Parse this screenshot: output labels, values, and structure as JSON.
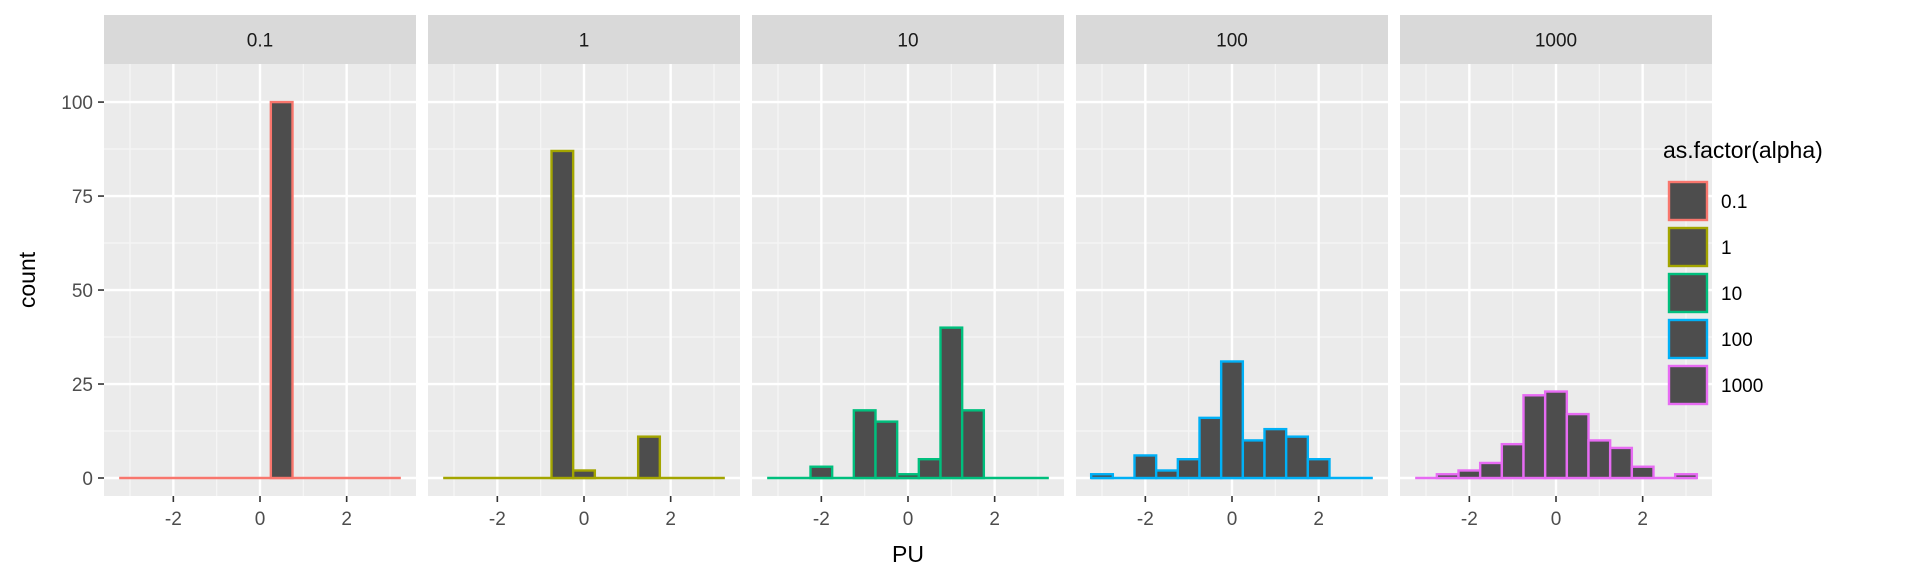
{
  "chart_data": {
    "type": "bar",
    "chart_kind": "faceted histogram",
    "xlabel": "PU",
    "ylabel": "count",
    "ylim": [
      0,
      108
    ],
    "xlim": [
      -3.6,
      3.6
    ],
    "y_ticks": [
      0,
      25,
      50,
      75,
      100
    ],
    "x_ticks": [
      -2,
      0,
      2
    ],
    "bin_width": 0.5,
    "grid": true,
    "legend": {
      "title": "as.factor(alpha)",
      "position": "right",
      "fill": "#4d4d4d"
    },
    "facets": [
      {
        "label": "0.1",
        "color": "#F8766D",
        "x_range": [
          -3.25,
          3.25
        ],
        "bins": [
          {
            "x": 0.5,
            "count": 100
          }
        ]
      },
      {
        "label": "1",
        "color": "#A3A500",
        "x_range": [
          -3.25,
          3.25
        ],
        "bins": [
          {
            "x": -0.5,
            "count": 87
          },
          {
            "x": 0.0,
            "count": 2
          },
          {
            "x": 1.5,
            "count": 11
          }
        ]
      },
      {
        "label": "10",
        "color": "#00BF7D",
        "x_range": [
          -3.25,
          3.25
        ],
        "bins": [
          {
            "x": -2.0,
            "count": 3
          },
          {
            "x": -1.0,
            "count": 18
          },
          {
            "x": -0.5,
            "count": 15
          },
          {
            "x": 0.0,
            "count": 1
          },
          {
            "x": 0.5,
            "count": 5
          },
          {
            "x": 1.0,
            "count": 40
          },
          {
            "x": 1.5,
            "count": 18
          }
        ]
      },
      {
        "label": "100",
        "color": "#00B0F6",
        "x_range": [
          -3.25,
          3.25
        ],
        "bins": [
          {
            "x": -3.0,
            "count": 1
          },
          {
            "x": -2.0,
            "count": 6
          },
          {
            "x": -1.5,
            "count": 2
          },
          {
            "x": -1.0,
            "count": 5
          },
          {
            "x": -0.5,
            "count": 16
          },
          {
            "x": 0.0,
            "count": 31
          },
          {
            "x": 0.5,
            "count": 10
          },
          {
            "x": 1.0,
            "count": 13
          },
          {
            "x": 1.5,
            "count": 11
          },
          {
            "x": 2.0,
            "count": 5
          }
        ]
      },
      {
        "label": "1000",
        "color": "#E76BF3",
        "x_range": [
          -3.25,
          3.25
        ],
        "bins": [
          {
            "x": -2.5,
            "count": 1
          },
          {
            "x": -2.0,
            "count": 2
          },
          {
            "x": -1.5,
            "count": 4
          },
          {
            "x": -1.0,
            "count": 9
          },
          {
            "x": -0.5,
            "count": 22
          },
          {
            "x": 0.0,
            "count": 23
          },
          {
            "x": 0.5,
            "count": 17
          },
          {
            "x": 1.0,
            "count": 10
          },
          {
            "x": 1.5,
            "count": 8
          },
          {
            "x": 2.0,
            "count": 3
          },
          {
            "x": 3.0,
            "count": 1
          }
        ]
      }
    ]
  }
}
